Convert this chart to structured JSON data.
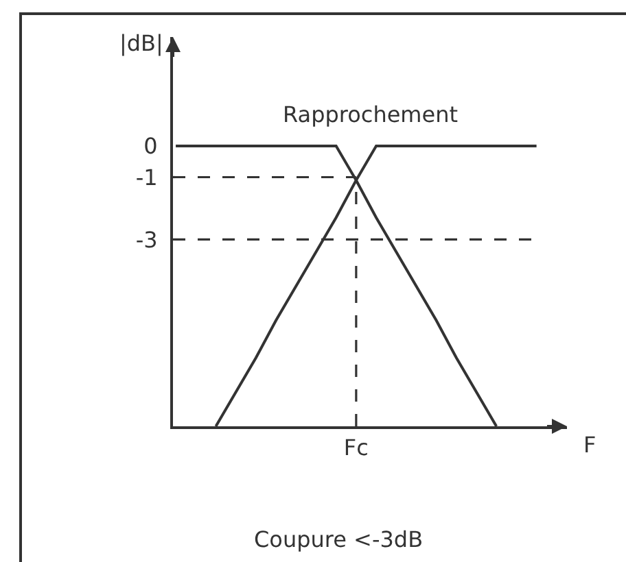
{
  "chart_data": {
    "type": "line",
    "ylabel": "|dB|",
    "xlabel": "F",
    "annotations": [
      "Rapprochement",
      "Coupure <-3dB"
    ],
    "categories": [
      null,
      null,
      null,
      null,
      null,
      null,
      null,
      null,
      null,
      "Fc",
      null,
      null,
      null,
      null,
      null,
      null,
      null,
      null,
      null
    ],
    "series": [
      {
        "color": "#333333",
        "values": [
          0,
          0,
          0,
          0,
          0,
          0,
          0,
          0,
          0,
          -1.1,
          -2.3,
          -3.4,
          -4.5,
          -5.6,
          -6.8,
          -7.9,
          -9,
          null,
          null
        ]
      },
      {
        "color": "#333333",
        "values": [
          null,
          null,
          -9,
          -7.9,
          -6.8,
          -5.6,
          -4.5,
          -3.4,
          -2.3,
          -1.1,
          0,
          0,
          0,
          0,
          0,
          0,
          0,
          0,
          0
        ]
      }
    ],
    "ylim": [
      -9,
      3.5
    ],
    "yticks": [
      0,
      -1,
      -3
    ],
    "line_style": "solid",
    "ref_lines": [
      {
        "axis": "y",
        "value": -1,
        "line_style": "dashed"
      },
      {
        "axis": "y",
        "value": -3,
        "line_style": "dashed"
      },
      {
        "axis": "x",
        "value": "Fc",
        "line_style": "dashed"
      }
    ]
  }
}
